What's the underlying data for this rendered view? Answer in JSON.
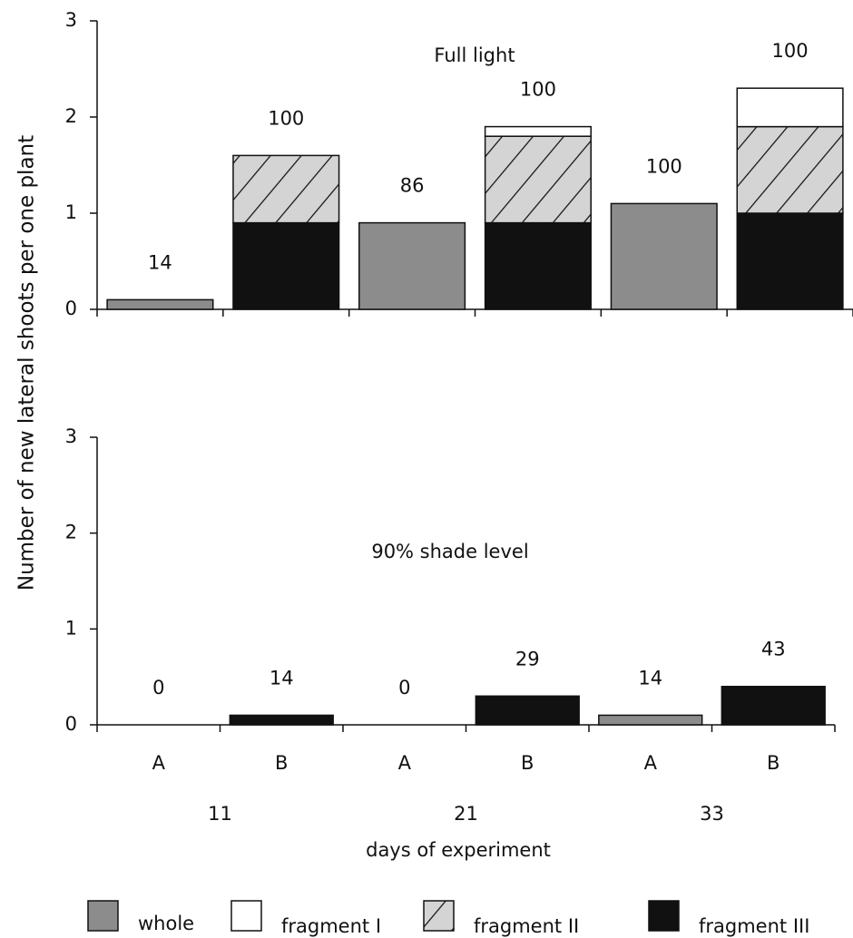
{
  "chart_data": [
    {
      "type": "bar",
      "title": "Full light",
      "ylabel": "Number of new lateral shoots per one plant",
      "categories": [
        null,
        null,
        null,
        null,
        null,
        null
      ],
      "series": [
        {
          "name": "whole",
          "color": "#8c8c8c",
          "values": [
            0.1,
            null,
            0.9,
            null,
            1.1,
            null
          ]
        },
        {
          "name": "fragment I",
          "color": "#ffffff",
          "values": [
            null,
            null,
            null,
            0.1,
            null,
            0.4
          ]
        },
        {
          "name": "fragment II",
          "color": "#d4d4d4",
          "pattern": "hatch",
          "values": [
            null,
            0.7,
            null,
            0.9,
            null,
            0.9
          ]
        },
        {
          "name": "fragment III",
          "color": "#111111",
          "values": [
            null,
            0.9,
            null,
            0.9,
            null,
            1.0
          ]
        }
      ],
      "bar_labels": [
        14,
        100,
        86,
        100,
        100,
        100
      ],
      "ylim": [
        0,
        3
      ],
      "yticks": [
        0,
        1,
        2,
        3
      ]
    },
    {
      "type": "bar",
      "title": "90% shade level",
      "xlabel": "days of experiment",
      "categories": [
        "A",
        "B",
        "A",
        "B",
        "A",
        "B"
      ],
      "groups": [
        11,
        21,
        33
      ],
      "series": [
        {
          "values": [
            0,
            null,
            0,
            null,
            0.1,
            null
          ]
        },
        {
          "values": [
            null,
            null,
            null,
            null,
            null,
            null
          ]
        },
        {
          "values": [
            null,
            null,
            null,
            null,
            null,
            null
          ]
        },
        {
          "values": [
            null,
            0.1,
            null,
            0.3,
            null,
            0.4
          ]
        }
      ],
      "bar_labels": [
        0,
        14,
        0,
        29,
        14,
        43
      ],
      "ylim": [
        0,
        3
      ],
      "yticks": [
        0,
        1,
        2,
        3
      ]
    }
  ]
}
